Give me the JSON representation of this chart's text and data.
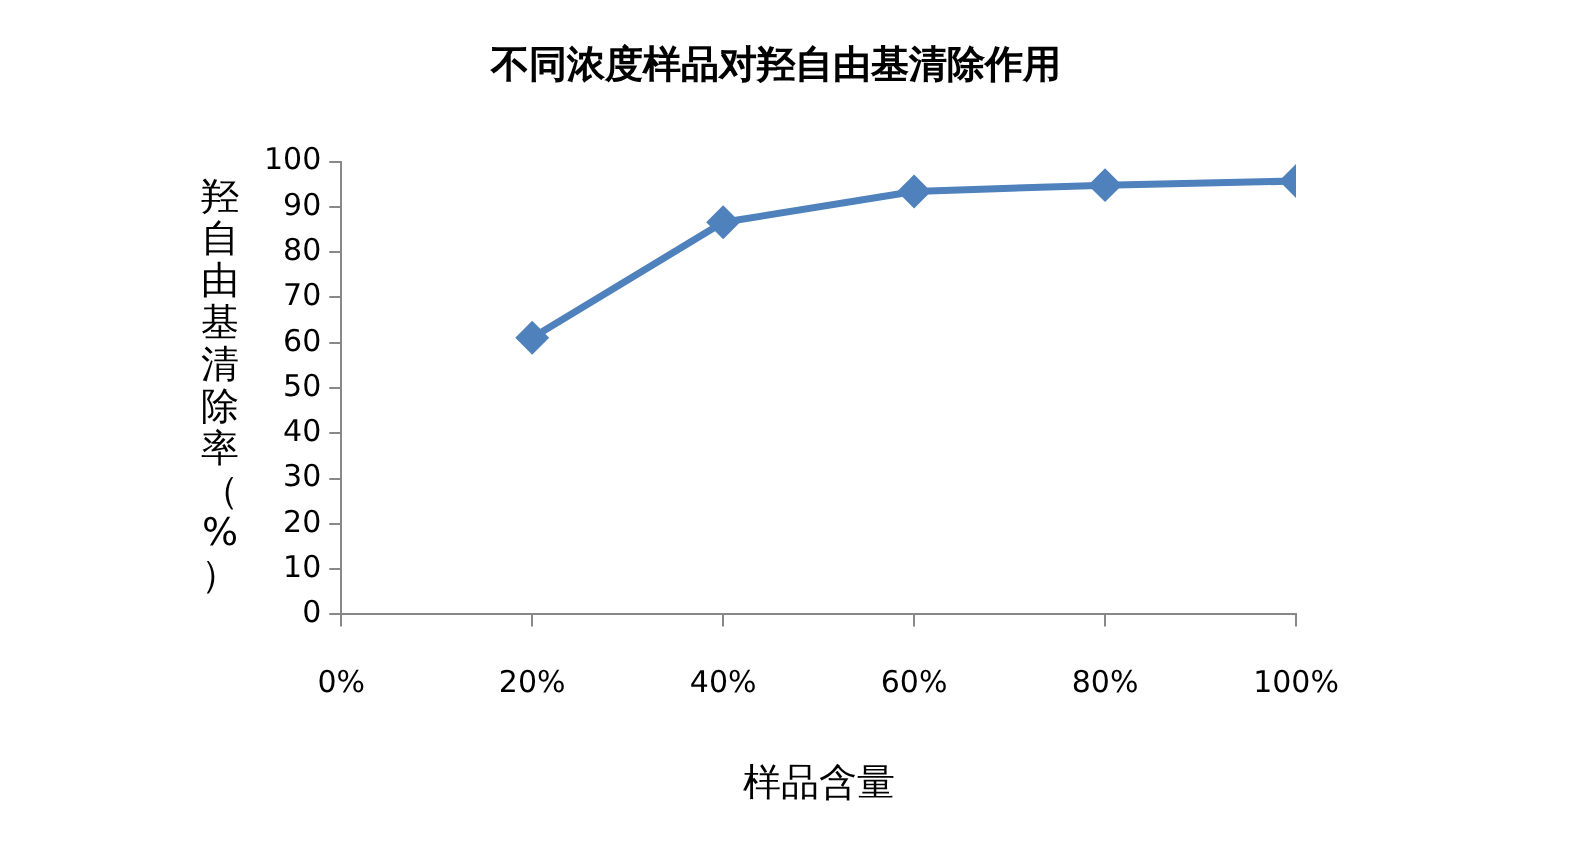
{
  "chart_data": {
    "type": "line",
    "title": "不同浓度样品对羟自由基清除作用",
    "xlabel": "样品含量",
    "ylabel": "羟自由基清除率（%）",
    "x": [
      20,
      40,
      60,
      80,
      100
    ],
    "series": [
      {
        "color": "#4f81bd",
        "values": [
          61.1,
          86.6,
          93.4,
          94.8,
          95.7
        ]
      }
    ],
    "xlim": [
      0,
      100
    ],
    "xticks": [
      {
        "value": 0,
        "label": "0%"
      },
      {
        "value": 20,
        "label": "20%"
      },
      {
        "value": 40,
        "label": "40%"
      },
      {
        "value": 60,
        "label": "60%"
      },
      {
        "value": 80,
        "label": "80%"
      },
      {
        "value": 100,
        "label": "100%"
      }
    ],
    "ylim": [
      0,
      100
    ],
    "yticks": [
      0,
      10,
      20,
      30,
      40,
      50,
      60,
      70,
      80,
      90,
      100
    ],
    "grid": false,
    "legend": false,
    "marker": "diamond",
    "line_style": "solid"
  }
}
